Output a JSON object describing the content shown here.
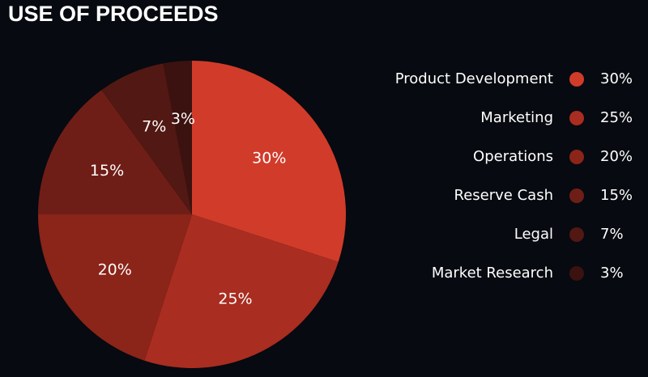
{
  "chart_data": {
    "type": "pie",
    "title": "USE OF PROCEEDS",
    "categories": [
      "Product Development",
      "Marketing",
      "Operations",
      "Reserve Cash",
      "Legal",
      "Market Research"
    ],
    "values": [
      30,
      25,
      20,
      15,
      7,
      3
    ],
    "value_labels": [
      "30%",
      "25%",
      "20%",
      "15%",
      "7%",
      "3%"
    ],
    "colors": [
      "#d13b2a",
      "#a92d20",
      "#8b2419",
      "#6f1e17",
      "#521813",
      "#3b120f"
    ]
  }
}
